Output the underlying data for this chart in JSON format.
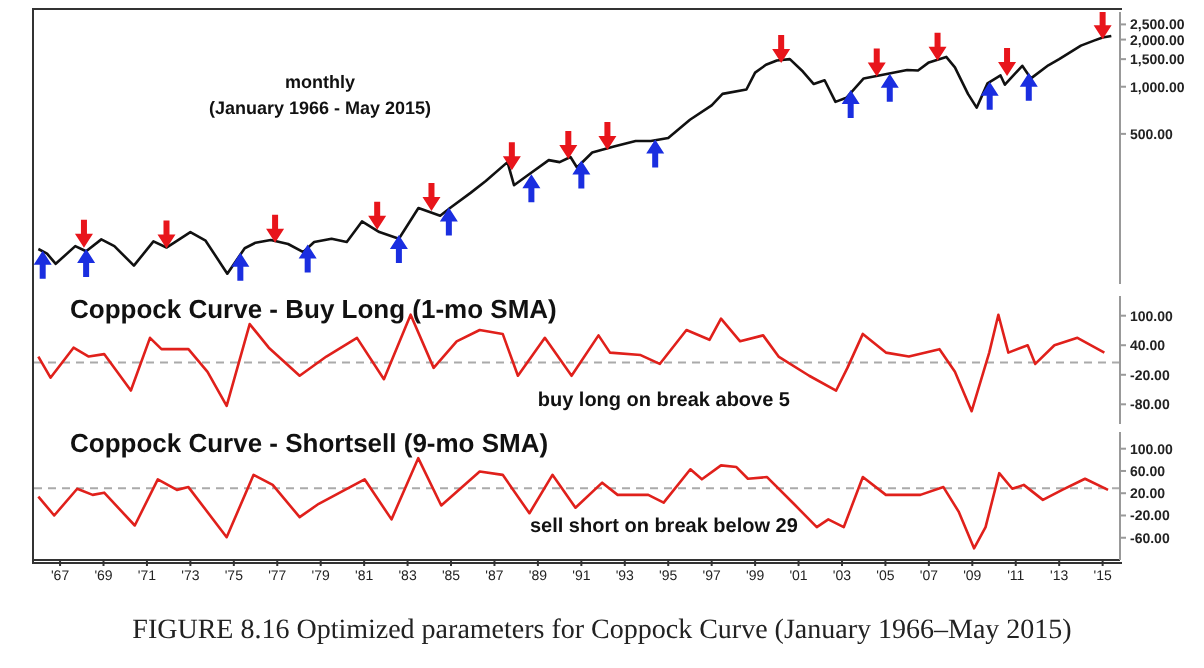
{
  "chart_data": [
    {
      "type": "line",
      "subtitle": "monthly",
      "annotations": [
        "(January 1966 - May 2015)"
      ],
      "log": "y",
      "grid": false,
      "legend": false,
      "tick_labels": "y",
      "xlim": [
        1965.8,
        2015.8
      ],
      "ylim": [
        55,
        3000
      ],
      "yticks": [
        {
          "value": 500,
          "label": "500.00"
        },
        {
          "value": 1000,
          "label": "1,000.00"
        },
        {
          "value": 1500,
          "label": "1,500.00"
        },
        {
          "value": 2000,
          "label": "2,000.00"
        },
        {
          "value": 2500,
          "label": "2,500.00"
        }
      ],
      "series": [
        {
          "type": "line",
          "color": "#111111",
          "marker": "none",
          "x": [
            1966.0,
            1966.4,
            1966.8,
            1967.7,
            1968.2,
            1968.9,
            1969.5,
            1970.4,
            1971.3,
            1971.9,
            1973.0,
            1973.7,
            1974.7,
            1975.5,
            1976.0,
            1976.7,
            1977.5,
            1978.2,
            1978.7,
            1979.5,
            1980.2,
            1980.9,
            1981.7,
            1982.6,
            1983.5,
            1984.5,
            1985.0,
            1985.9,
            1986.6,
            1987.6,
            1987.9,
            1988.5,
            1989.5,
            1990.0,
            1990.5,
            1990.8,
            1991.5,
            1992.5,
            1993.5,
            1994.2,
            1995.0,
            1996.0,
            1997.0,
            1997.5,
            1998.6,
            1999.0,
            1999.5,
            2000.0,
            2000.6,
            2001.2,
            2001.7,
            2002.2,
            2002.7,
            2003.2,
            2004.0,
            2005.0,
            2006.0,
            2006.5,
            2007.0,
            2007.8,
            2008.2,
            2008.8,
            2009.2,
            2009.7,
            2010.3,
            2010.5,
            2011.3,
            2011.7,
            2012.5,
            2013.0,
            2014.0,
            2014.6,
            2015.0,
            2015.4
          ],
          "values": [
            92,
            86,
            74,
            96,
            89,
            106,
            96,
            72,
            103,
            94,
            118,
            104,
            64,
            93,
            101,
            105,
            99,
            88,
            102,
            107,
            102,
            138,
            118,
            107,
            168,
            150,
            170,
            210,
            250,
            330,
            235,
            270,
            340,
            330,
            356,
            305,
            380,
            415,
            450,
            450,
            470,
            615,
            760,
            900,
            960,
            1230,
            1380,
            1470,
            1500,
            1250,
            1040,
            1100,
            800,
            850,
            1130,
            1200,
            1280,
            1270,
            1430,
            1550,
            1330,
            900,
            735,
            1050,
            1180,
            1030,
            1360,
            1130,
            1370,
            1500,
            1830,
            1970,
            2060,
            2107
          ]
        },
        {
          "type": "scatter",
          "color": "#e8151b",
          "x": [
            1968.1,
            1971.9,
            1976.9,
            1981.6,
            1984.1,
            1987.8,
            1990.4,
            1992.2,
            2000.2,
            2004.6,
            2007.4,
            2010.6,
            2015.0
          ],
          "values": [
            115,
            114,
            124,
            150,
            198,
            360,
            425,
            485,
            1740,
            1430,
            1800,
            1440,
            2470
          ]
        },
        {
          "type": "scatter",
          "color": "#1a2ee0",
          "x": [
            1966.2,
            1968.2,
            1975.3,
            1978.4,
            1982.6,
            1984.9,
            1988.7,
            1991.0,
            1994.4,
            2003.4,
            2005.2,
            2009.8,
            2011.6
          ],
          "values": [
            73,
            75,
            71,
            80,
            92,
            138,
            225,
            275,
            375,
            775,
            985,
            875,
            1000
          ]
        }
      ]
    },
    {
      "type": "line",
      "title": "Coppock Curve - Buy Long (1-mo SMA)",
      "grid": false,
      "legend": false,
      "tick_labels": "y",
      "xlim": [
        1965.8,
        2015.8
      ],
      "ylim": [
        -120,
        140
      ],
      "yticks": [
        {
          "value": -80,
          "label": "-80.00"
        },
        {
          "value": -20,
          "label": "-20.00"
        },
        {
          "value": 40,
          "label": "40.00"
        },
        {
          "value": 100,
          "label": "100.00"
        }
      ],
      "ref_lines": [
        {
          "axis": "y",
          "value": 5,
          "label": "buy long on break above 5",
          "color": "#aaaaaa",
          "line_style": "dashed"
        }
      ],
      "series": [
        {
          "type": "line",
          "color": "#e0201b",
          "marker": "none",
          "x": [
            1966.0,
            1966.56,
            1967.62,
            1968.32,
            1969.03,
            1970.26,
            1971.14,
            1971.67,
            1972.91,
            1973.79,
            1974.67,
            1975.73,
            1976.61,
            1978.03,
            1979.26,
            1980.67,
            1981.91,
            1983.14,
            1984.2,
            1985.26,
            1986.32,
            1987.38,
            1988.08,
            1989.32,
            1990.55,
            1991.79,
            1992.32,
            1993.73,
            1994.61,
            1995.84,
            1996.9,
            1997.43,
            1998.31,
            1999.37,
            2000.08,
            2001.49,
            2002.73,
            2003.25,
            2003.96,
            2005.02,
            2006.08,
            2007.49,
            2008.2,
            2008.97,
            2009.78,
            2010.2,
            2010.66,
            2011.55,
            2011.9,
            2012.78,
            2013.84,
            2015.08
          ],
          "values": [
            17,
            -26,
            35,
            17,
            22,
            -52,
            55,
            32,
            32,
            -14,
            -83,
            83,
            35,
            -22,
            17,
            55,
            -29,
            102,
            -6,
            48,
            71,
            63,
            -22,
            55,
            -22,
            60,
            25,
            20,
            2,
            71,
            51,
            94,
            48,
            60,
            17,
            -22,
            -52,
            -6,
            63,
            25,
            17,
            32,
            -14,
            -94,
            25,
            102,
            25,
            40,
            2,
            40,
            55,
            25
          ]
        }
      ]
    },
    {
      "type": "line",
      "title": "Coppock Curve - Shortsell (9-mo SMA)",
      "annotations": [
        "FIGURE 8.16 Optimized parameters for Coppock Curve (January 1966–May 2015)"
      ],
      "grid": false,
      "legend": false,
      "xlim": [
        1965.8,
        2015.8
      ],
      "ylim": [
        -100,
        130
      ],
      "xticks": [
        {
          "value": 1967,
          "label": "'67"
        },
        {
          "value": 1969,
          "label": "'69"
        },
        {
          "value": 1971,
          "label": "'71"
        },
        {
          "value": 1973,
          "label": "'73"
        },
        {
          "value": 1975,
          "label": "'75"
        },
        {
          "value": 1977,
          "label": "'77"
        },
        {
          "value": 1979,
          "label": "'79"
        },
        {
          "value": 1981,
          "label": "'81"
        },
        {
          "value": 1983,
          "label": "'83"
        },
        {
          "value": 1985,
          "label": "'85"
        },
        {
          "value": 1987,
          "label": "'87"
        },
        {
          "value": 1989,
          "label": "'89"
        },
        {
          "value": 1991,
          "label": "'91"
        },
        {
          "value": 1993,
          "label": "'93"
        },
        {
          "value": 1995,
          "label": "'95"
        },
        {
          "value": 1997,
          "label": "'97"
        },
        {
          "value": 1999,
          "label": "'99"
        },
        {
          "value": 2001,
          "label": "'01"
        },
        {
          "value": 2003,
          "label": "'03"
        },
        {
          "value": 2005,
          "label": "'05"
        },
        {
          "value": 2007,
          "label": "'07"
        },
        {
          "value": 2009,
          "label": "'09"
        },
        {
          "value": 2011,
          "label": "'11"
        },
        {
          "value": 2013,
          "label": "'13"
        },
        {
          "value": 2015,
          "label": "'15"
        }
      ],
      "yticks": [
        {
          "value": -60,
          "label": "-60.00"
        },
        {
          "value": -20,
          "label": "-20.00"
        },
        {
          "value": 20,
          "label": "20.00"
        },
        {
          "value": 60,
          "label": "60.00"
        },
        {
          "value": 100,
          "label": "100.00"
        }
      ],
      "ref_lines": [
        {
          "axis": "y",
          "value": 29,
          "label": "sell short on break below 29",
          "color": "#aaaaaa",
          "line_style": "dashed"
        }
      ],
      "series": [
        {
          "type": "line",
          "color": "#e0201b",
          "marker": "none",
          "x": [
            1966.0,
            1966.73,
            1967.79,
            1968.5,
            1969.03,
            1970.44,
            1971.5,
            1972.38,
            1972.91,
            1974.67,
            1975.91,
            1976.79,
            1978.03,
            1978.91,
            1981.02,
            1982.26,
            1983.49,
            1984.55,
            1986.32,
            1987.38,
            1988.61,
            1989.67,
            1990.73,
            1991.96,
            1992.67,
            1994.08,
            1994.79,
            1996.02,
            1996.55,
            1997.43,
            1998.14,
            1998.67,
            1999.55,
            2000.78,
            2001.84,
            2002.37,
            2003.08,
            2003.96,
            2005.02,
            2006.61,
            2007.67,
            2008.37,
            2009.08,
            2009.61,
            2010.24,
            2010.84,
            2011.37,
            2012.25,
            2013.14,
            2014.19,
            2015.25
          ],
          "values": [
            14,
            -20,
            28,
            17,
            21,
            -38,
            45,
            26,
            31,
            -59,
            53,
            35,
            -23,
            1,
            45,
            -27,
            83,
            -2,
            59,
            53,
            -16,
            53,
            -6,
            39,
            17,
            17,
            3,
            63,
            45,
            70,
            67,
            46,
            49,
            1,
            -41,
            -27,
            -41,
            49,
            17,
            17,
            31,
            -13,
            -79,
            -41,
            56,
            28,
            35,
            8,
            26,
            46,
            26
          ]
        }
      ]
    }
  ]
}
